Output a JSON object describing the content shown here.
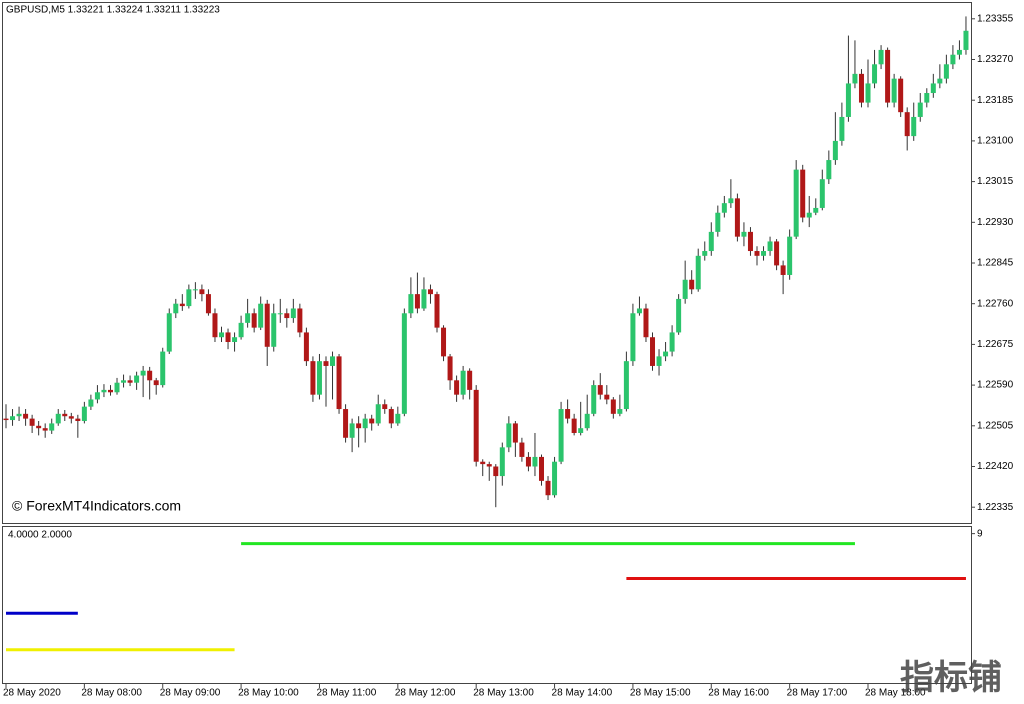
{
  "chart_data": [
    {
      "type": "candlestick",
      "title": "GBPUSD,M5  1.33221 1.33224 1.33211 1.33223",
      "annotation": "© ForexMT4Indicators.com",
      "watermark": "指标铺",
      "up_color": "#2bc46c",
      "down_color": "#b01818",
      "wick_color": "#333333",
      "ylim": [
        1.22302,
        1.23388
      ],
      "yticks": [
        1.23355,
        {
          "value": 1.2327,
          "label": "1.23270"
        },
        1.23185,
        {
          "value": 1.231,
          "label": "1.23100"
        },
        1.23015,
        {
          "value": 1.2293,
          "label": "1.22930"
        },
        1.22845,
        {
          "value": 1.2276,
          "label": "1.22760"
        },
        1.22675,
        {
          "value": 1.2259,
          "label": "1.22590"
        },
        1.22505,
        {
          "value": 1.2242,
          "label": "1.22420"
        },
        1.22335
      ],
      "xlim": [
        0,
        148
      ],
      "xticks": [
        {
          "value": 0,
          "label": "28 May 2020"
        },
        {
          "value": 12,
          "label": "28 May 08:00"
        },
        {
          "value": 24,
          "label": "28 May 09:00"
        },
        {
          "value": 36,
          "label": "28 May 10:00"
        },
        {
          "value": 48,
          "label": "28 May 11:00"
        },
        {
          "value": 60,
          "label": "28 May 12:00"
        },
        {
          "value": 72,
          "label": "28 May 13:00"
        },
        {
          "value": 84,
          "label": "28 May 14:00"
        },
        {
          "value": 96,
          "label": "28 May 15:00"
        },
        {
          "value": 108,
          "label": "28 May 16:00"
        },
        {
          "value": 120,
          "label": "28 May 17:00"
        },
        {
          "value": 132,
          "label": "28 May 18:00"
        }
      ],
      "candles": [
        [
          1.2252,
          1.2255,
          1.225,
          1.22517
        ],
        [
          1.22517,
          1.2254,
          1.22505,
          1.22525
        ],
        [
          1.22525,
          1.22545,
          1.22515,
          1.2253
        ],
        [
          1.2253,
          1.2254,
          1.22505,
          1.2252
        ],
        [
          1.2252,
          1.22528,
          1.2249,
          1.22505
        ],
        [
          1.22505,
          1.22515,
          1.22485,
          1.225
        ],
        [
          1.225,
          1.2251,
          1.2248,
          1.22495
        ],
        [
          1.22495,
          1.2252,
          1.22488,
          1.2251
        ],
        [
          1.2251,
          1.2254,
          1.22505,
          1.2253
        ],
        [
          1.2253,
          1.22538,
          1.22515,
          1.22525
        ],
        [
          1.22525,
          1.22532,
          1.2251,
          1.2252
        ],
        [
          1.2252,
          1.22528,
          1.2248,
          1.22515
        ],
        [
          1.22515,
          1.22555,
          1.2251,
          1.22545
        ],
        [
          1.22545,
          1.2257,
          1.22538,
          1.2256
        ],
        [
          1.2256,
          1.2259,
          1.22552,
          1.22575
        ],
        [
          1.22575,
          1.22592,
          1.22565,
          1.2258
        ],
        [
          1.2258,
          1.2259,
          1.22568,
          1.22575
        ],
        [
          1.22575,
          1.22605,
          1.2257,
          1.22595
        ],
        [
          1.22595,
          1.22612,
          1.22585,
          1.226
        ],
        [
          1.226,
          1.2261,
          1.22588,
          1.22595
        ],
        [
          1.22595,
          1.22618,
          1.2258,
          1.2261
        ],
        [
          1.2261,
          1.2263,
          1.22565,
          1.2262
        ],
        [
          1.2262,
          1.22628,
          1.2256,
          1.226
        ],
        [
          1.226,
          1.22605,
          1.2257,
          1.2259
        ],
        [
          1.2259,
          1.22668,
          1.22585,
          1.2266
        ],
        [
          1.2266,
          1.2275,
          1.22655,
          1.2274
        ],
        [
          1.2274,
          1.2277,
          1.2273,
          1.2276
        ],
        [
          1.2276,
          1.2278,
          1.22745,
          1.22755
        ],
        [
          1.22755,
          1.228,
          1.2275,
          1.2279
        ],
        [
          1.2279,
          1.22805,
          1.2277,
          1.2279
        ],
        [
          1.2279,
          1.228,
          1.22765,
          1.2278
        ],
        [
          1.2278,
          1.2279,
          1.22735,
          1.2274
        ],
        [
          1.2274,
          1.2275,
          1.2268,
          1.2269
        ],
        [
          1.2269,
          1.22712,
          1.2268,
          1.227
        ],
        [
          1.227,
          1.22708,
          1.22665,
          1.2268
        ],
        [
          1.2268,
          1.227,
          1.2266,
          1.2269
        ],
        [
          1.2269,
          1.22735,
          1.22685,
          1.2272
        ],
        [
          1.2272,
          1.2277,
          1.2271,
          1.2274
        ],
        [
          1.2274,
          1.2275,
          1.227,
          1.2271
        ],
        [
          1.2271,
          1.22775,
          1.22705,
          1.2276
        ],
        [
          1.2276,
          1.22768,
          1.2263,
          1.2267
        ],
        [
          1.2267,
          1.2276,
          1.2266,
          1.2274
        ],
        [
          1.2274,
          1.2277,
          1.2272,
          1.2274
        ],
        [
          1.2274,
          1.2275,
          1.2271,
          1.2273
        ],
        [
          1.2273,
          1.2277,
          1.2272,
          1.2275
        ],
        [
          1.2275,
          1.2276,
          1.2269,
          1.227
        ],
        [
          1.227,
          1.2271,
          1.2263,
          1.2264
        ],
        [
          1.2264,
          1.2265,
          1.22555,
          1.2257
        ],
        [
          1.2257,
          1.22655,
          1.2256,
          1.2264
        ],
        [
          1.2264,
          1.2265,
          1.22545,
          1.2263
        ],
        [
          1.2263,
          1.2266,
          1.2256,
          1.2265
        ],
        [
          1.2265,
          1.22655,
          1.2253,
          1.2254
        ],
        [
          1.2254,
          1.2255,
          1.2247,
          1.2248
        ],
        [
          1.2248,
          1.2252,
          1.2245,
          1.2251
        ],
        [
          1.2251,
          1.22525,
          1.2246,
          1.225
        ],
        [
          1.225,
          1.2253,
          1.2247,
          1.2252
        ],
        [
          1.2252,
          1.22528,
          1.22495,
          1.2251
        ],
        [
          1.2251,
          1.2257,
          1.22505,
          1.2255
        ],
        [
          1.2255,
          1.2256,
          1.2253,
          1.2254
        ],
        [
          1.2254,
          1.22545,
          1.225,
          1.2251
        ],
        [
          1.2251,
          1.22545,
          1.22505,
          1.2253
        ],
        [
          1.2253,
          1.2275,
          1.22525,
          1.2274
        ],
        [
          1.2274,
          1.22815,
          1.2273,
          1.2278
        ],
        [
          1.2278,
          1.22825,
          1.2274,
          1.2275
        ],
        [
          1.2275,
          1.22815,
          1.22745,
          1.2279
        ],
        [
          1.2279,
          1.228,
          1.2276,
          1.2278
        ],
        [
          1.2278,
          1.22785,
          1.227,
          1.2271
        ],
        [
          1.2271,
          1.22715,
          1.2264,
          1.2265
        ],
        [
          1.2265,
          1.22655,
          1.2258,
          1.226
        ],
        [
          1.226,
          1.2261,
          1.22555,
          1.2257
        ],
        [
          1.2257,
          1.2263,
          1.2256,
          1.2262
        ],
        [
          1.2262,
          1.22625,
          1.2256,
          1.2258
        ],
        [
          1.2258,
          1.2259,
          1.2242,
          1.2243
        ],
        [
          1.2243,
          1.22435,
          1.224,
          1.22425
        ],
        [
          1.22425,
          1.2243,
          1.2239,
          1.2242
        ],
        [
          1.2242,
          1.22425,
          1.22335,
          1.224
        ],
        [
          1.224,
          1.2247,
          1.2238,
          1.2246
        ],
        [
          1.2246,
          1.22525,
          1.2245,
          1.2251
        ],
        [
          1.2251,
          1.22515,
          1.2244,
          1.2247
        ],
        [
          1.2247,
          1.2248,
          1.2243,
          1.2244
        ],
        [
          1.2244,
          1.2245,
          1.2241,
          1.2242
        ],
        [
          1.2242,
          1.2249,
          1.224,
          1.2244
        ],
        [
          1.2244,
          1.22445,
          1.2238,
          1.2239
        ],
        [
          1.2239,
          1.224,
          1.2235,
          1.2236
        ],
        [
          1.2236,
          1.2244,
          1.22355,
          1.2243
        ],
        [
          1.2243,
          1.22555,
          1.22425,
          1.2254
        ],
        [
          1.2254,
          1.2256,
          1.2251,
          1.2252
        ],
        [
          1.2252,
          1.2253,
          1.22485,
          1.2249
        ],
        [
          1.2249,
          1.22555,
          1.22485,
          1.225
        ],
        [
          1.225,
          1.2257,
          1.22495,
          1.2253
        ],
        [
          1.2253,
          1.226,
          1.22525,
          1.2259
        ],
        [
          1.2259,
          1.22615,
          1.2256,
          1.2257
        ],
        [
          1.2257,
          1.2259,
          1.2255,
          1.2256
        ],
        [
          1.2256,
          1.22565,
          1.2252,
          1.2253
        ],
        [
          1.2253,
          1.2257,
          1.22525,
          1.2254
        ],
        [
          1.2254,
          1.2266,
          1.22535,
          1.2264
        ],
        [
          1.2264,
          1.2276,
          1.2263,
          1.2274
        ],
        [
          1.2274,
          1.22775,
          1.22735,
          1.2275
        ],
        [
          1.2275,
          1.2276,
          1.2268,
          1.2269
        ],
        [
          1.2269,
          1.227,
          1.2262,
          1.2263
        ],
        [
          1.2263,
          1.22665,
          1.2261,
          1.2265
        ],
        [
          1.2265,
          1.2268,
          1.2264,
          1.2266
        ],
        [
          1.2266,
          1.22715,
          1.2265,
          1.227
        ],
        [
          1.227,
          1.2278,
          1.22695,
          1.2277
        ],
        [
          1.2277,
          1.2285,
          1.2276,
          1.2281
        ],
        [
          1.2281,
          1.2283,
          1.2278,
          1.2279
        ],
        [
          1.2279,
          1.22875,
          1.22785,
          1.2286
        ],
        [
          1.2286,
          1.2289,
          1.2285,
          1.2287
        ],
        [
          1.2287,
          1.2293,
          1.2286,
          1.2291
        ],
        [
          1.2291,
          1.22965,
          1.229,
          1.2295
        ],
        [
          1.2295,
          1.22985,
          1.2294,
          1.2297
        ],
        [
          1.2297,
          1.2302,
          1.2296,
          1.2298
        ],
        [
          1.2298,
          1.2299,
          1.2289,
          1.229
        ],
        [
          1.229,
          1.2293,
          1.2288,
          1.2291
        ],
        [
          1.2291,
          1.2292,
          1.2286,
          1.2287
        ],
        [
          1.2287,
          1.2288,
          1.2284,
          1.2286
        ],
        [
          1.2286,
          1.2288,
          1.2285,
          1.2287
        ],
        [
          1.2287,
          1.229,
          1.2286,
          1.2289
        ],
        [
          1.2289,
          1.22895,
          1.2283,
          1.2284
        ],
        [
          1.2284,
          1.2285,
          1.2278,
          1.2282
        ],
        [
          1.2282,
          1.22915,
          1.2281,
          1.229
        ],
        [
          1.229,
          1.2306,
          1.22895,
          1.2304
        ],
        [
          1.2304,
          1.2305,
          1.2293,
          1.2294
        ],
        [
          1.2294,
          1.22985,
          1.2292,
          1.2295
        ],
        [
          1.2295,
          1.2298,
          1.22945,
          1.2296
        ],
        [
          1.2296,
          1.2304,
          1.22955,
          1.2302
        ],
        [
          1.2302,
          1.2308,
          1.2301,
          1.2306
        ],
        [
          1.2306,
          1.2316,
          1.2305,
          1.231
        ],
        [
          1.231,
          1.2318,
          1.2309,
          1.2315
        ],
        [
          1.2315,
          1.2332,
          1.2314,
          1.2322
        ],
        [
          1.2322,
          1.2331,
          1.2321,
          1.2324
        ],
        [
          1.2324,
          1.2325,
          1.2317,
          1.2318
        ],
        [
          1.2318,
          1.2327,
          1.2317,
          1.2322
        ],
        [
          1.2322,
          1.2329,
          1.2321,
          1.2326
        ],
        [
          1.2326,
          1.233,
          1.2325,
          1.2329
        ],
        [
          1.2329,
          1.23295,
          1.2317,
          1.2318
        ],
        [
          1.2318,
          1.2324,
          1.2317,
          1.2323
        ],
        [
          1.2323,
          1.23235,
          1.2315,
          1.2316
        ],
        [
          1.2316,
          1.2317,
          1.2308,
          1.2311
        ],
        [
          1.2311,
          1.2318,
          1.231,
          1.2315
        ],
        [
          1.2315,
          1.232,
          1.2314,
          1.2318
        ],
        [
          1.2318,
          1.2321,
          1.2317,
          1.232
        ],
        [
          1.232,
          1.2324,
          1.2319,
          1.2322
        ],
        [
          1.2322,
          1.2326,
          1.2321,
          1.2323
        ],
        [
          1.2323,
          1.2328,
          1.2322,
          1.2326
        ],
        [
          1.2326,
          1.233,
          1.2325,
          1.2328
        ],
        [
          1.2328,
          1.2331,
          1.2327,
          1.2329
        ],
        [
          1.2329,
          1.2336,
          1.2328,
          1.2333
        ]
      ]
    },
    {
      "type": "line",
      "title": "4.0000 2.0000",
      "ylim": [
        0,
        9.4
      ],
      "yticks": [
        9
      ],
      "series": [
        {
          "color": "#0000c8",
          "x": [
            0,
            11
          ],
          "values": [
            4.2,
            4.2
          ]
        },
        {
          "color": "#f0f000",
          "x": [
            0,
            35
          ],
          "values": [
            2,
            2
          ]
        },
        {
          "color": "#22e622",
          "x": [
            36,
            130
          ],
          "values": [
            8.4,
            8.4
          ]
        },
        {
          "color": "#e01010",
          "x": [
            95,
            147
          ],
          "values": [
            6.3,
            6.3
          ]
        }
      ]
    }
  ]
}
